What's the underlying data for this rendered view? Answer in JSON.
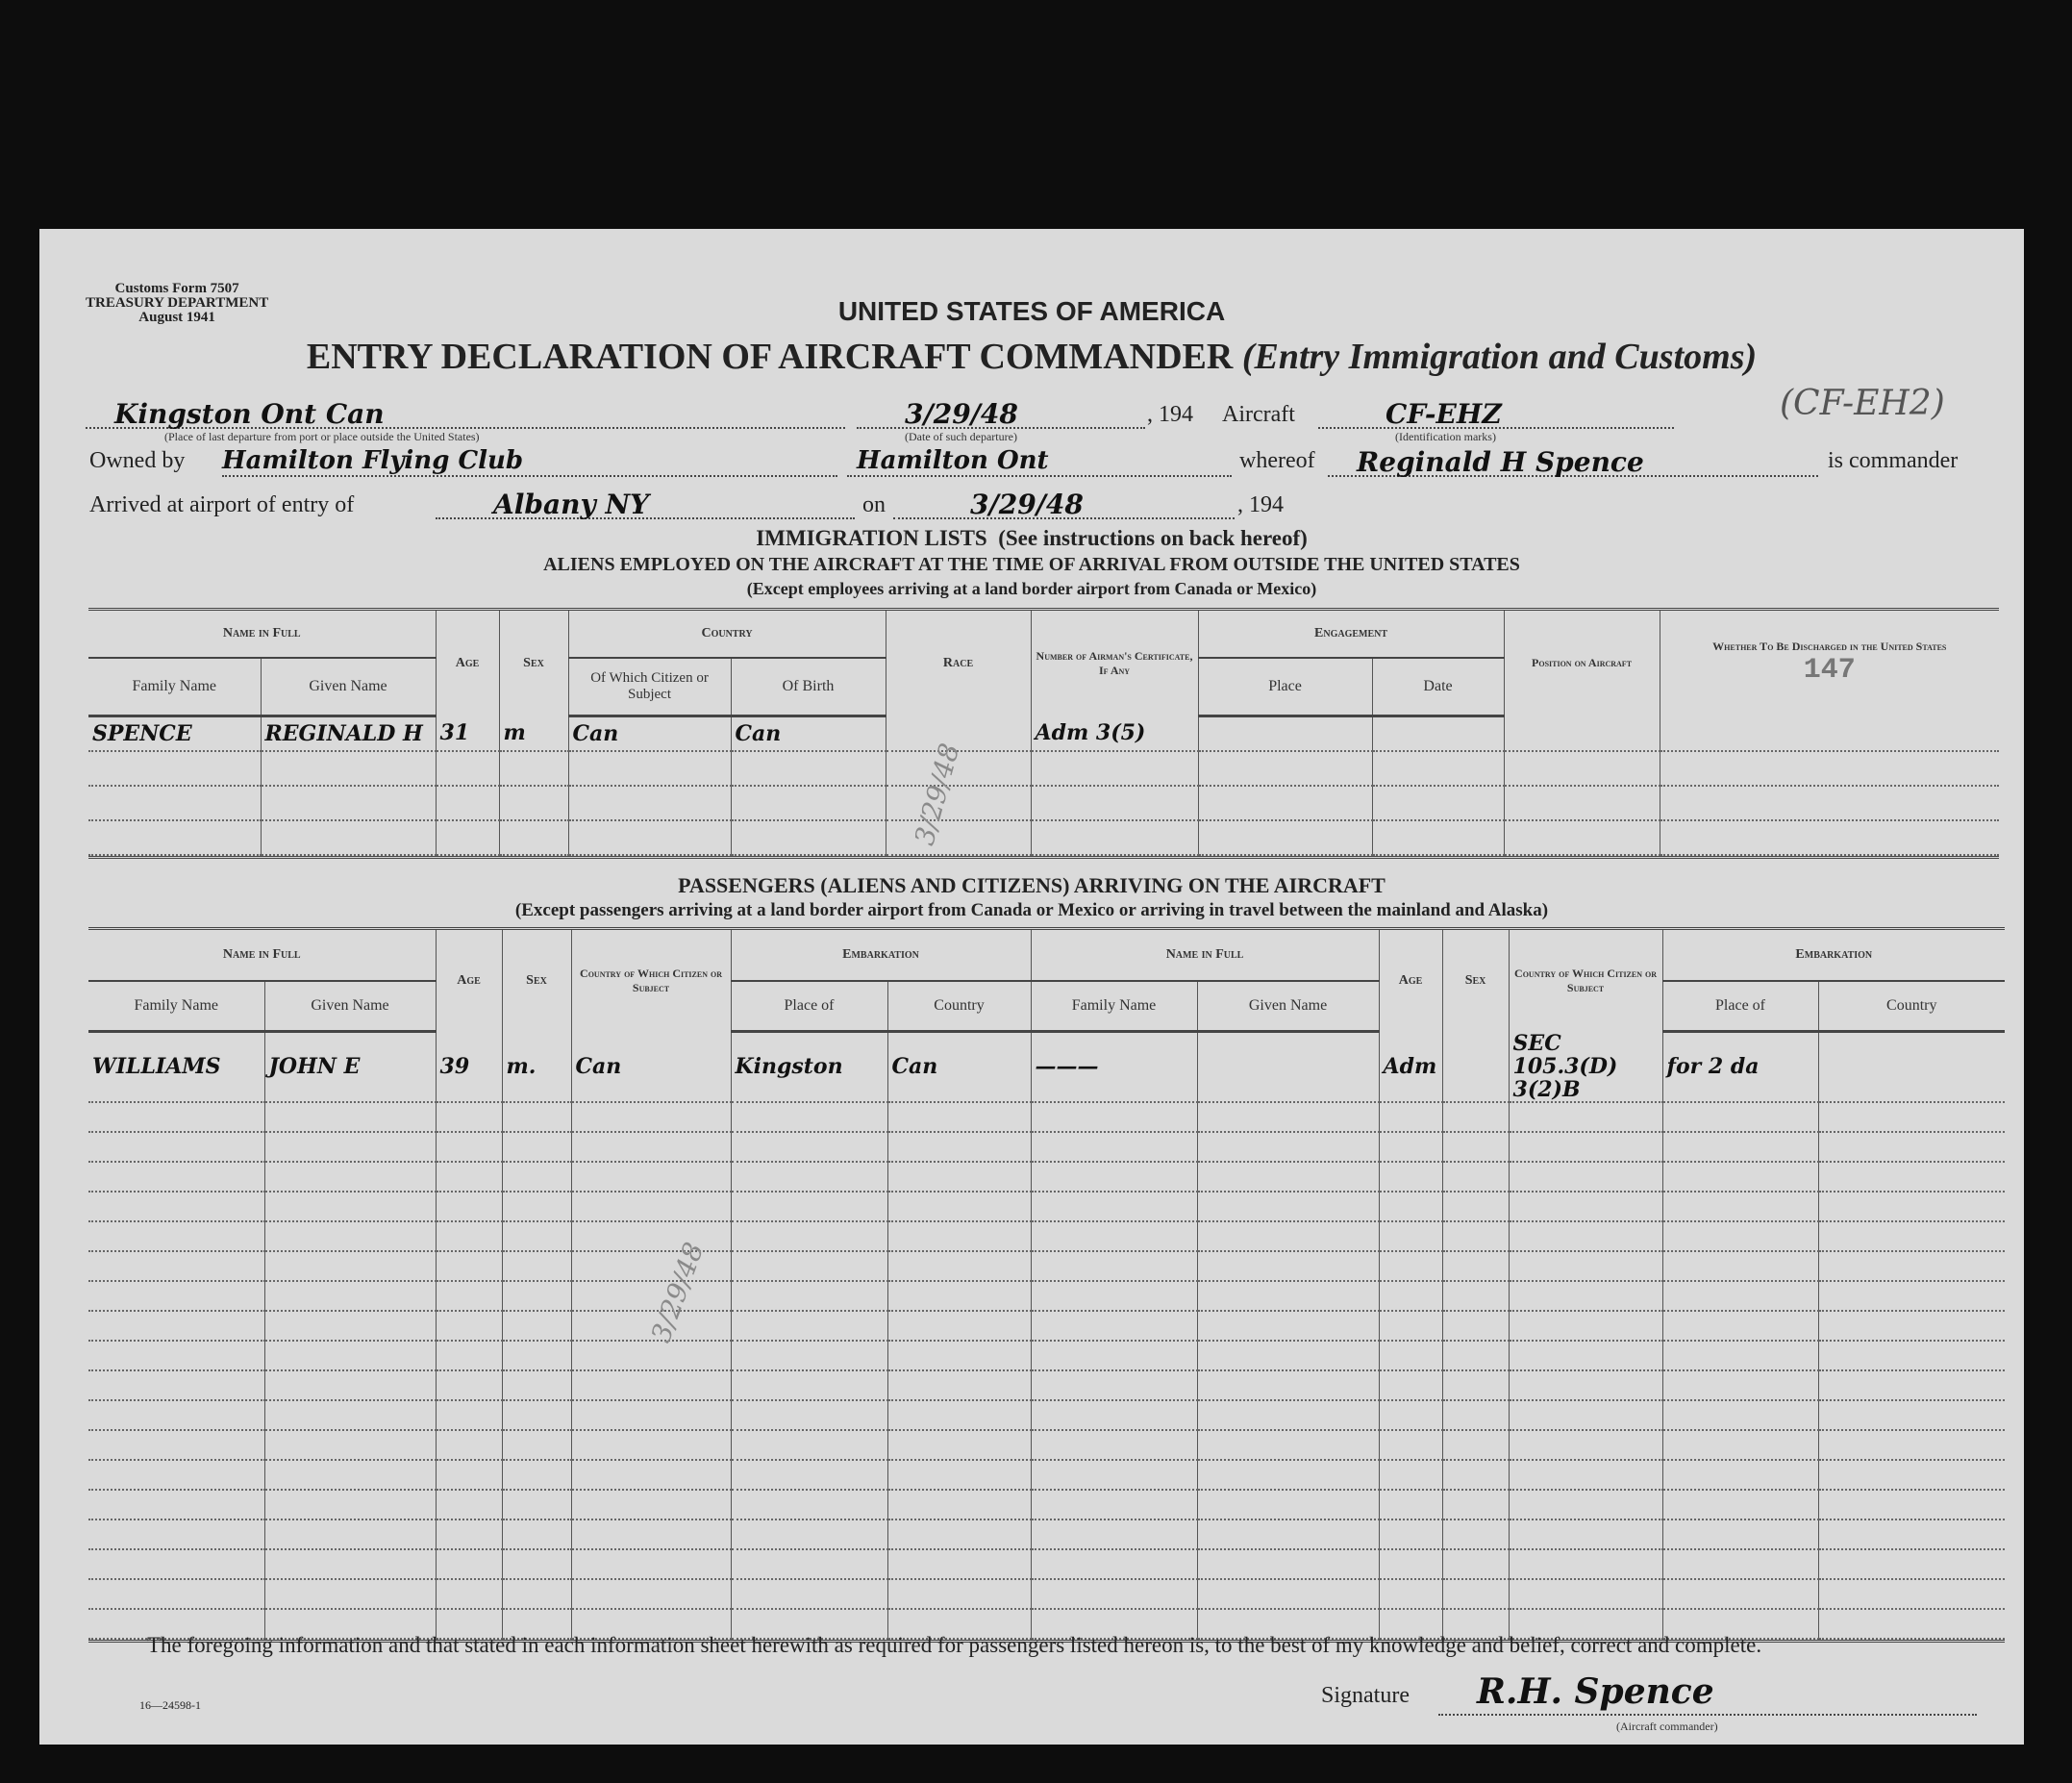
{
  "form": {
    "form_number": "Customs Form 7507",
    "department": "TREASURY DEPARTMENT",
    "date": "August 1941",
    "country_heading": "UNITED STATES OF AMERICA",
    "title_main": "ENTRY DECLARATION OF AIRCRAFT COMMANDER",
    "title_sub": "(Entry Immigration and Customs)",
    "print_code": "16—24598-1"
  },
  "departure": {
    "place_value": "Kingston Ont Can",
    "place_caption": "(Place of last departure from port or place outside the United States)",
    "date_value": "3/29/48",
    "date_caption": "(Date of such departure)",
    "year_suffix": ", 194",
    "aircraft_label": "Aircraft",
    "aircraft_value": "CF-EHZ",
    "aircraft_caption": "(Identification marks)",
    "aircraft_annotation": "(CF-EH2)"
  },
  "ownership": {
    "owned_by_label": "Owned by",
    "owner_value": "Hamilton Flying Club",
    "owner_location": "Hamilton Ont",
    "whereof_label": "whereof",
    "commander_value": "Reginald H Spence",
    "commander_suffix": "is commander"
  },
  "arrival": {
    "label": "Arrived at airport of entry of",
    "airport_value": "Albany NY",
    "on_label": "on",
    "date_value": "3/29/48",
    "year_suffix": ", 194"
  },
  "immigration": {
    "heading": "IMMIGRATION LISTS",
    "heading_note": "(See instructions on back hereof)",
    "aliens_heading": "ALIENS EMPLOYED ON THE AIRCRAFT AT THE TIME OF ARRIVAL FROM OUTSIDE THE UNITED STATES",
    "aliens_note": "(Except employees arriving at a land border airport from Canada or Mexico)",
    "headers": {
      "name_in_full": "Name in Full",
      "family_name": "Family Name",
      "given_name": "Given Name",
      "age": "Age",
      "sex": "Sex",
      "country": "Country",
      "citizen_of": "Of Which Citizen or Subject",
      "of_birth": "Of Birth",
      "race": "Race",
      "certificate": "Number of Airman's Certificate, If Any",
      "engagement": "Engagement",
      "place": "Place",
      "date": "Date",
      "position": "Position on Aircraft",
      "discharged": "Whether To Be Discharged in the United States"
    },
    "stamp_number": "147",
    "rows": [
      [
        "SPENCE",
        "REGINALD H",
        "31",
        "m",
        "Can",
        "Can",
        "",
        "Adm 3(5)",
        "",
        "",
        "",
        ""
      ],
      [
        "",
        "",
        "",
        "",
        "",
        "",
        "",
        "",
        "",
        "",
        "",
        ""
      ],
      [
        "",
        "",
        "",
        "",
        "",
        "",
        "",
        "",
        "",
        "",
        "",
        ""
      ],
      [
        "",
        "",
        "",
        "",
        "",
        "",
        "",
        "",
        "",
        "",
        "",
        ""
      ]
    ],
    "pencil_note": "3/29/48"
  },
  "passengers": {
    "heading": "PASSENGERS (ALIENS AND CITIZENS) ARRIVING ON THE AIRCRAFT",
    "note": "(Except passengers arriving at a land border airport from Canada or Mexico or arriving in travel between the mainland and Alaska)",
    "headers": {
      "name_in_full": "Name in Full",
      "family_name": "Family Name",
      "given_name": "Given Name",
      "age": "Age",
      "sex": "Sex",
      "country_citizen": "Country of Which Citizen or Subject",
      "embarkation": "Embarkation",
      "place_of": "Place of",
      "country": "Country"
    },
    "rows": [
      [
        "WILLIAMS",
        "JOHN E",
        "39",
        "m.",
        "Can",
        "Kingston",
        "Can",
        "———",
        "",
        "Adm",
        "",
        "SEC 105.3(D) 3(2)B",
        "for 2 da",
        ""
      ]
    ],
    "empty_rows": 18,
    "pencil_note": "3/29/48"
  },
  "declaration": {
    "text": "The foregoing information and that stated in each information sheet herewith as required for passengers listed hereon is, to the best of my knowledge and belief, correct and complete.",
    "signature_label": "Signature",
    "signature_value": "R.H. Spence",
    "signature_caption": "(Aircraft commander)"
  }
}
